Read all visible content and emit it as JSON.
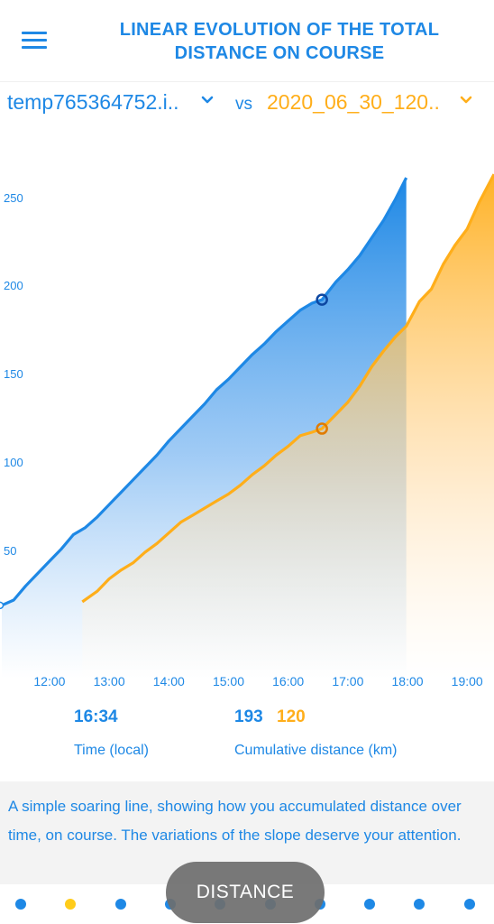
{
  "header": {
    "title_line1": "LINEAR EVOLUTION OF THE TOTAL",
    "title_line2": "DISTANCE ON COURSE",
    "menu_icon": "hamburger-menu-icon"
  },
  "selectors": {
    "a_label": "temp765364752.i..",
    "vs_label": "vs",
    "b_label": "2020_06_30_120..",
    "chevron_icon": "chevron-down-icon"
  },
  "colors": {
    "series_a": "#1e88e5",
    "series_b": "#ffae1a",
    "accent": "#1e88e5"
  },
  "chart_data": {
    "type": "area",
    "xlabel": "Time (local)",
    "ylabel": "Cumulative distance (km)",
    "x_ticks": [
      "12:00",
      "13:00",
      "14:00",
      "15:00",
      "16:00",
      "17:00",
      "18:00",
      "19:00"
    ],
    "y_ticks": [
      50,
      100,
      150,
      200,
      250
    ],
    "xlim_hours": [
      11.17,
      19.45
    ],
    "ylim": [
      0,
      260
    ],
    "grid": false,
    "series": [
      {
        "name": "temp765364752.i..",
        "color": "#1e88e5",
        "x_hours": [
          11.2,
          11.4,
          11.6,
          11.8,
          12.0,
          12.2,
          12.4,
          12.6,
          12.8,
          13.0,
          13.2,
          13.4,
          13.6,
          13.8,
          14.0,
          14.2,
          14.4,
          14.6,
          14.8,
          15.0,
          15.2,
          15.4,
          15.6,
          15.8,
          16.0,
          16.2,
          16.4,
          16.567,
          16.8,
          17.0,
          17.2,
          17.4,
          17.6,
          17.8,
          17.98
        ],
        "values": [
          20,
          23,
          31,
          38,
          45,
          52,
          60,
          64,
          70,
          77,
          84,
          91,
          98,
          105,
          113,
          120,
          127,
          134,
          142,
          148,
          155,
          162,
          168,
          175,
          181,
          187,
          191,
          193,
          203,
          210,
          218,
          228,
          238,
          250,
          262
        ]
      },
      {
        "name": "2020_06_30_120..",
        "color": "#ffae1a",
        "x_hours": [
          12.55,
          12.8,
          13.0,
          13.2,
          13.4,
          13.6,
          13.8,
          14.0,
          14.2,
          14.4,
          14.6,
          14.8,
          15.0,
          15.2,
          15.4,
          15.6,
          15.8,
          16.0,
          16.2,
          16.4,
          16.567,
          16.8,
          17.0,
          17.2,
          17.4,
          17.6,
          17.8,
          17.98,
          18.2,
          18.4,
          18.6,
          18.8,
          19.0,
          19.2,
          19.45
        ],
        "values": [
          22,
          28,
          35,
          40,
          44,
          50,
          55,
          61,
          67,
          71,
          75,
          79,
          83,
          88,
          94,
          99,
          105,
          110,
          116,
          118,
          120,
          128,
          135,
          144,
          155,
          164,
          172,
          178,
          192,
          199,
          213,
          224,
          233,
          248,
          264
        ]
      }
    ],
    "cursor": {
      "time": "16:34",
      "a_value": 193,
      "b_value": 120
    }
  },
  "readout": {
    "time": "16:34",
    "time_caption": "Time (local)",
    "a_value": "193",
    "b_value": "120",
    "dist_caption": "Cumulative distance (km)"
  },
  "description": "A simple soaring line, showing how you accumulated distance over time, on course. The variations of the slope deserve your attention.",
  "bottom": {
    "pill_label": "DISTANCE",
    "dots_count": 10,
    "active_dot": 1
  }
}
